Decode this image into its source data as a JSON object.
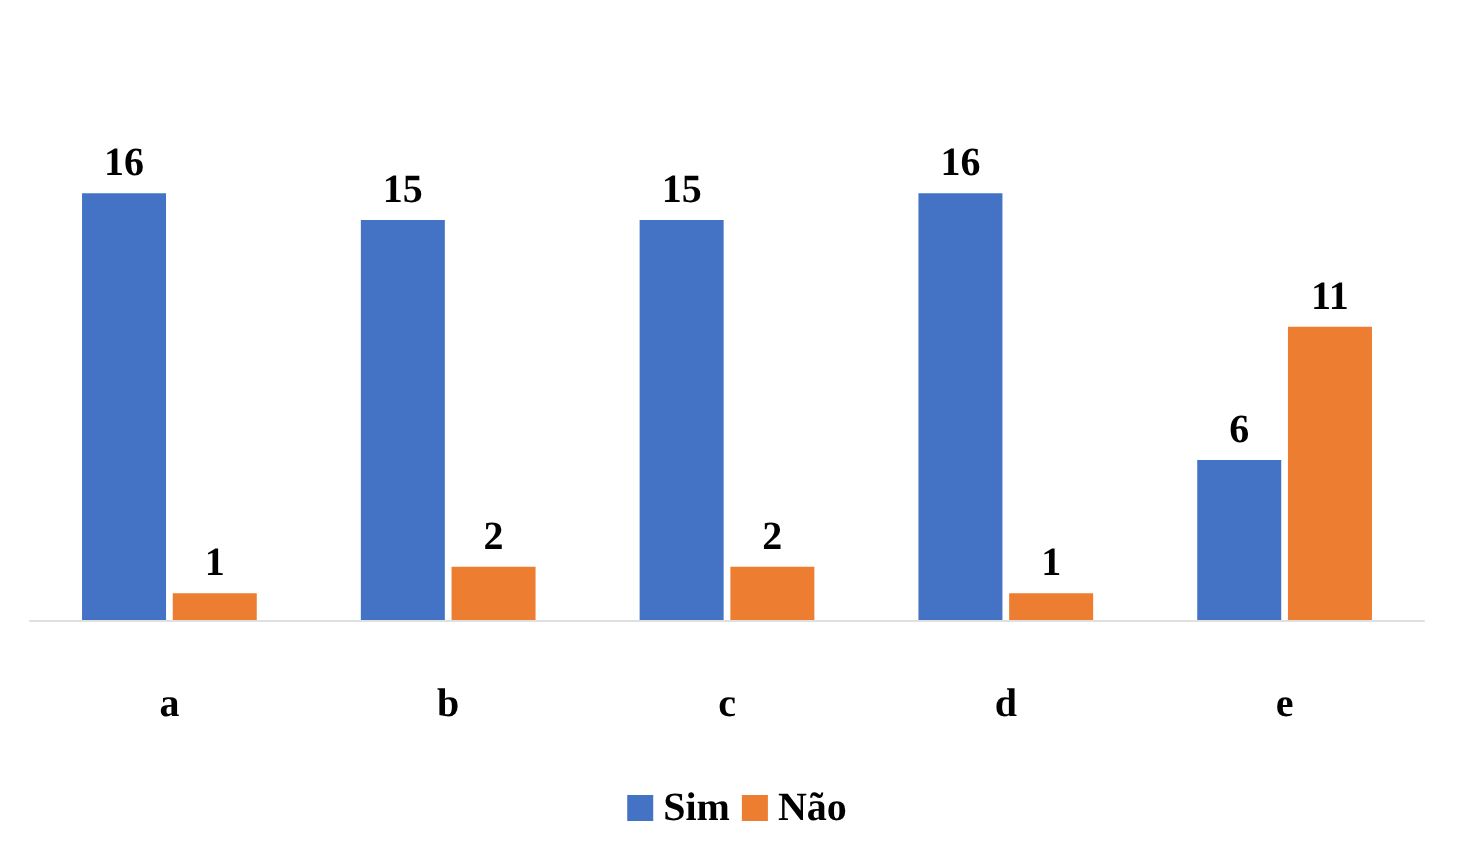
{
  "chart_data": {
    "type": "bar",
    "categories": [
      "a",
      "b",
      "c",
      "d",
      "e"
    ],
    "series": [
      {
        "name": "Sim",
        "color": "#4472c4",
        "values": [
          16,
          15,
          15,
          16,
          6
        ]
      },
      {
        "name": "Não",
        "color": "#ed7d31",
        "values": [
          1,
          2,
          2,
          1,
          11
        ]
      }
    ],
    "data_labels": true,
    "legend": "bottom"
  }
}
